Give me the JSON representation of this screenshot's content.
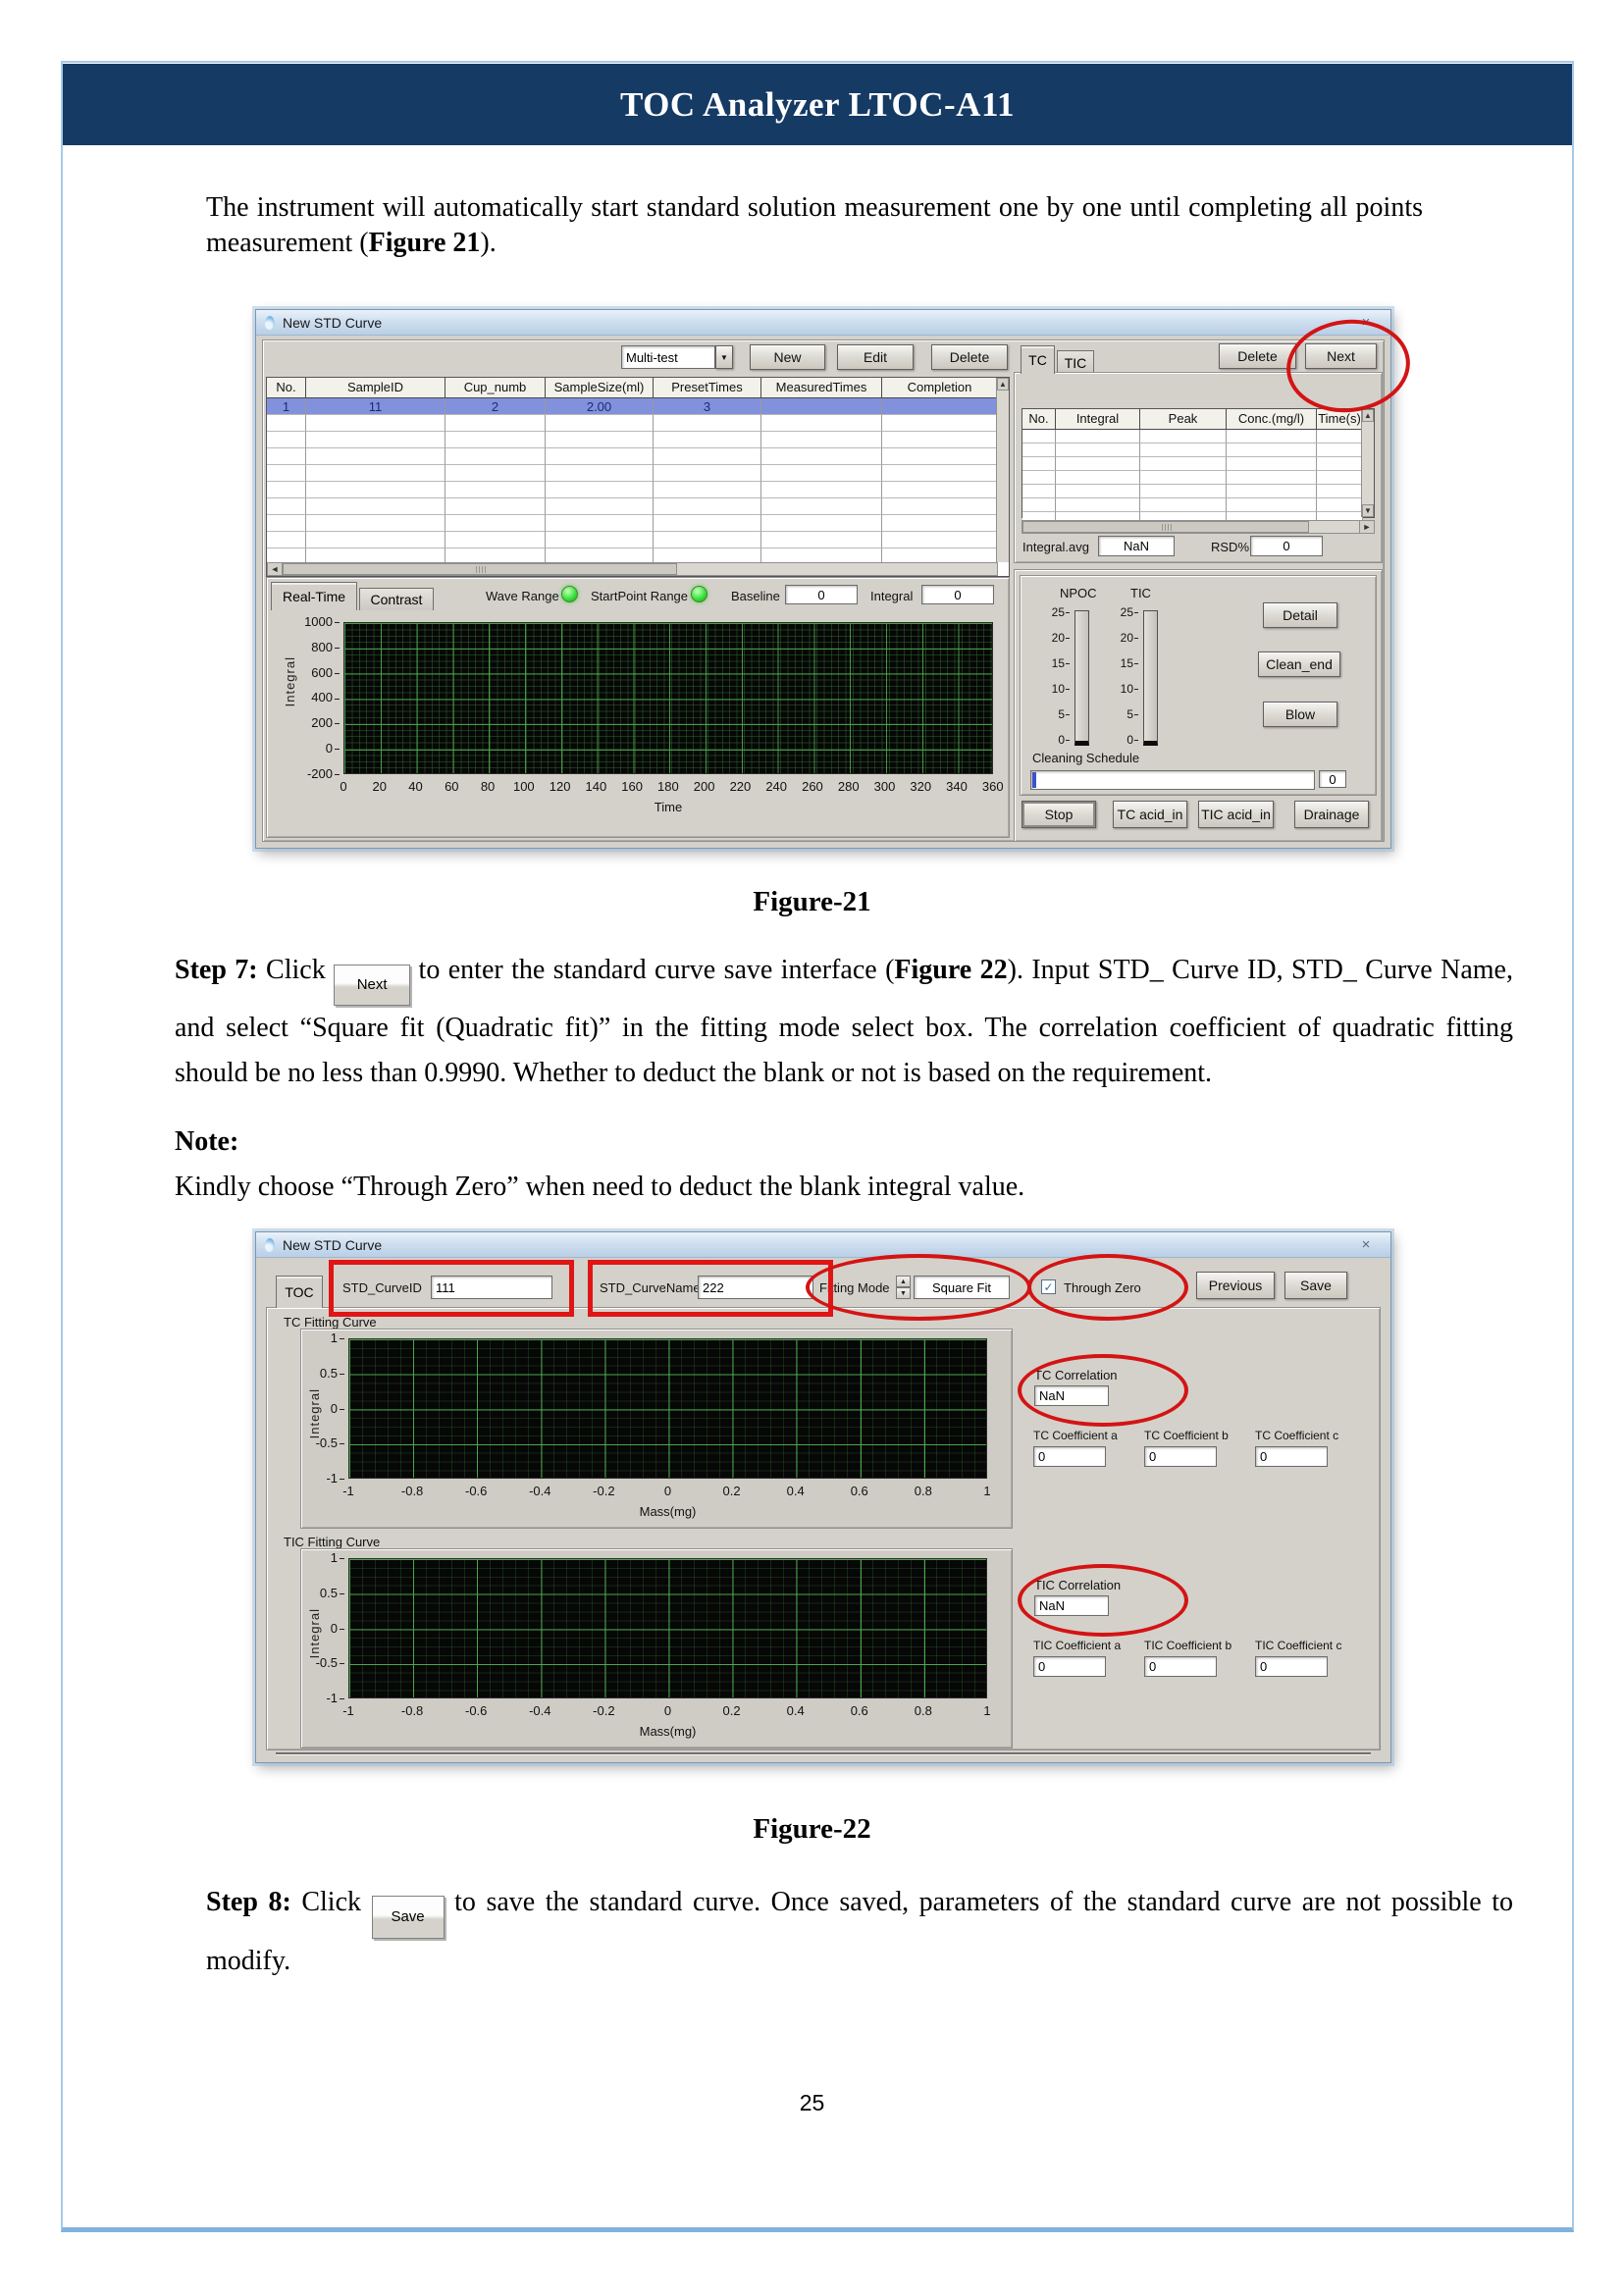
{
  "page": {
    "number": "25"
  },
  "icons": {
    "close": "×",
    "dropdown": "▼",
    "up": "▲",
    "down": "▼",
    "left": "◄",
    "right": "►",
    "check": "✓"
  },
  "header": {
    "title": "TOC Analyzer LTOC-A11"
  },
  "intro": {
    "pre": "The instrument will automatically start standard solution measurement one by one until completing all points measurement (",
    "figure_ref": "Figure 21",
    "post": ")."
  },
  "captions": {
    "figure21": "Figure-21",
    "figure22": "Figure-22"
  },
  "step7": {
    "label": "Step 7:",
    "pre": " Click ",
    "button_label": "Next",
    "mid": " to enter the standard curve save interface (",
    "figure_ref": "Figure 22",
    "post": "). Input STD_ Curve ID, STD_ Curve Name, and select “Square fit (Quadratic fit)” in the fitting mode select box. The correlation coefficient of quadratic fitting should be no less than 0.9990. Whether to deduct the blank or not is based on the requirement."
  },
  "note": {
    "label": "Note:",
    "text": "Kindly choose “Through Zero” when need to deduct the blank integral value."
  },
  "step8": {
    "label": "Step 8:",
    "pre": " Click ",
    "button_label": "Save",
    "post": " to save the standard curve. Once saved, parameters of the standard curve are not possible to modify."
  },
  "figure21": {
    "window_title": "New STD Curve",
    "toolbar": {
      "mode_select": "Multi-test",
      "new": "New",
      "edit": "Edit",
      "delete": "Delete"
    },
    "sample_table": {
      "headers": [
        "No.",
        "SampleID",
        "Cup_numb",
        "SampleSize(ml)",
        "PresetTimes",
        "MeasuredTimes",
        "Completion"
      ],
      "selected_row": 1,
      "rows": [
        [
          "1",
          "11",
          "2",
          "2.00",
          "3",
          "",
          ""
        ],
        [
          "",
          "",
          "",
          "",
          "",
          "",
          ""
        ],
        [
          "",
          "",
          "",
          "",
          "",
          "",
          ""
        ],
        [
          "",
          "",
          "",
          "",
          "",
          "",
          ""
        ],
        [
          "",
          "",
          "",
          "",
          "",
          "",
          ""
        ],
        [
          "",
          "",
          "",
          "",
          "",
          "",
          ""
        ],
        [
          "",
          "",
          "",
          "",
          "",
          "",
          ""
        ],
        [
          "",
          "",
          "",
          "",
          "",
          "",
          ""
        ],
        [
          "",
          "",
          "",
          "",
          "",
          "",
          ""
        ],
        [
          "",
          "",
          "",
          "",
          "",
          "",
          ""
        ]
      ]
    },
    "results": {
      "tabs": [
        "TC",
        "TIC"
      ],
      "delete": "Delete",
      "next": "Next",
      "headers": [
        "No.",
        "Integral",
        "Peak",
        "Conc.(mg/l)",
        "Time(s)"
      ],
      "rows": [
        [
          "",
          "",
          "",
          "",
          ""
        ],
        [
          "",
          "",
          "",
          "",
          ""
        ],
        [
          "",
          "",
          "",
          "",
          ""
        ],
        [
          "",
          "",
          "",
          "",
          ""
        ],
        [
          "",
          "",
          "",
          "",
          ""
        ],
        [
          "",
          "",
          "",
          "",
          ""
        ],
        [
          "",
          "",
          "",
          "",
          ""
        ]
      ],
      "integral_avg_label": "Integral.avg",
      "integral_avg_value": "NaN",
      "rsd_label": "RSD%",
      "rsd_value": "0"
    },
    "monitor": {
      "tabs": [
        "Real-Time",
        "Contrast"
      ],
      "wave_range_label": "Wave Range",
      "startpoint_range_label": "StartPoint Range",
      "baseline_label": "Baseline",
      "baseline_value": "0",
      "integral_label": "Integral",
      "integral_value": "0",
      "chart": {
        "type": "line",
        "ylabel": "Integral",
        "xlabel": "Time",
        "y_ticks": [
          "1000",
          "800",
          "600",
          "400",
          "200",
          "0",
          "-200"
        ],
        "x_ticks": [
          "0",
          "20",
          "40",
          "60",
          "80",
          "100",
          "120",
          "140",
          "160",
          "180",
          "200",
          "220",
          "240",
          "260",
          "280",
          "300",
          "320",
          "340",
          "360"
        ],
        "series": []
      }
    },
    "control": {
      "gauges": [
        {
          "label": "NPOC"
        },
        {
          "label": "TIC"
        }
      ],
      "gauge_ticks": [
        "25",
        "20",
        "15",
        "10",
        "5",
        "0"
      ],
      "detail": "Detail",
      "clean_end": "Clean_end",
      "blow": "Blow",
      "cleaning_label": "Cleaning Schedule",
      "cleaning_value": "0",
      "stop": "Stop",
      "tc_acid_in": "TC acid_in",
      "tic_acid_in": "TIC acid_in",
      "drainage": "Drainage"
    }
  },
  "figure22": {
    "window_title": "New STD Curve",
    "tab": "TOC",
    "fields": {
      "curve_id_label": "STD_CurveID",
      "curve_id_value": "111",
      "curve_name_label": "STD_CurveName",
      "curve_name_value": "222",
      "fitting_mode_label": "Fitting Mode",
      "fitting_mode_value": "Square Fit",
      "through_zero_label": "Through Zero",
      "previous": "Previous",
      "save": "Save"
    },
    "tc": {
      "section": "TC Fitting Curve",
      "correlation_label": "TC Correlation",
      "correlation_value": "NaN",
      "coeff_a_label": "TC Coefficient a",
      "coeff_a_value": "0",
      "coeff_b_label": "TC Coefficient b",
      "coeff_b_value": "0",
      "coeff_c_label": "TC Coefficient c",
      "coeff_c_value": "0"
    },
    "tic": {
      "section": "TIC Fitting Curve",
      "correlation_label": "TIC Correlation",
      "correlation_value": "NaN",
      "coeff_a_label": "TIC Coefficient a",
      "coeff_a_value": "0",
      "coeff_b_label": "TIC Coefficient b",
      "coeff_b_value": "0",
      "coeff_c_label": "TIC Coefficient c",
      "coeff_c_value": "0"
    },
    "chart": {
      "type": "line",
      "ylabel": "Integral",
      "xlabel": "Mass(mg)",
      "y_ticks": [
        "1",
        "0.5",
        "0",
        "-0.5",
        "-1"
      ],
      "x_ticks": [
        "-1",
        "-0.8",
        "-0.6",
        "-0.4",
        "-0.2",
        "0",
        "0.2",
        "0.4",
        "0.6",
        "0.8",
        "1"
      ],
      "series": []
    }
  }
}
